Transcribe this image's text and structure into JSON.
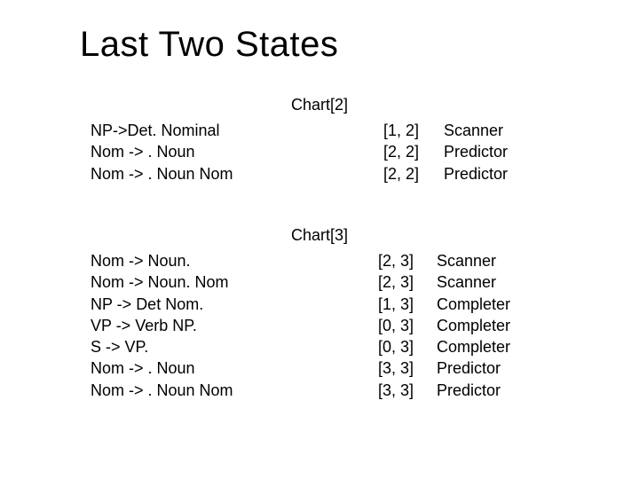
{
  "title": "Last Two States",
  "sections": [
    {
      "heading": "Chart[2]",
      "rows": [
        {
          "rule": "NP->Det. Nominal",
          "span": "[1, 2]",
          "action": "Scanner"
        },
        {
          "rule": "Nom -> . Noun",
          "span": "[2, 2]",
          "action": "Predictor"
        },
        {
          "rule": "Nom -> . Noun Nom",
          "span": "[2, 2]",
          "action": "Predictor"
        }
      ]
    },
    {
      "heading": "Chart[3]",
      "rows": [
        {
          "rule": "Nom -> Noun.",
          "span": "[2, 3]",
          "action": "Scanner"
        },
        {
          "rule": "Nom -> Noun. Nom",
          "span": "[2, 3]",
          "action": "Scanner"
        },
        {
          "rule": "NP -> Det Nom.",
          "span": "[1, 3]",
          "action": "Completer"
        },
        {
          "rule": "VP -> Verb NP.",
          "span": "[0, 3]",
          "action": "Completer"
        },
        {
          "rule": "S -> VP.",
          "span": "[0, 3]",
          "action": "Completer"
        },
        {
          "rule": "Nom -> . Noun",
          "span": "[3, 3]",
          "action": "Predictor"
        },
        {
          "rule": "Nom -> . Noun Nom",
          "span": "[3, 3]",
          "action": "Predictor"
        }
      ]
    }
  ],
  "style": {
    "background_color": "#ffffff",
    "text_color": "#000000",
    "title_fontsize": 40,
    "body_fontsize": 18,
    "font_family": "Arial"
  }
}
